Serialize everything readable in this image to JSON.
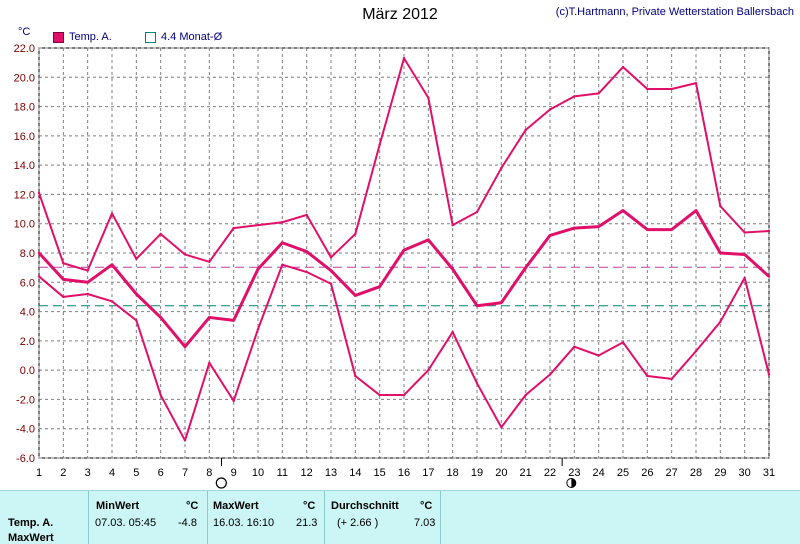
{
  "header": {
    "title": "März 2012",
    "copyright": "(c)T.Hartmann, Private Wetterstation Ballersbach"
  },
  "legend": {
    "unit": "°C",
    "series_label": "Temp. A.",
    "mean_label": "4.4 Monat-Ø"
  },
  "colors": {
    "series": "#e0106a",
    "month_avg_line": "#c040a0",
    "longterm_avg_line": "#008080",
    "grid": "#7f7f7f"
  },
  "moon_icons": [
    "new-moon-icon",
    "full-moon-icon"
  ],
  "chart_data": {
    "type": "line",
    "x": [
      1,
      2,
      3,
      4,
      5,
      6,
      7,
      8,
      9,
      10,
      11,
      12,
      13,
      14,
      15,
      16,
      17,
      18,
      19,
      20,
      21,
      22,
      23,
      24,
      25,
      26,
      27,
      28,
      29,
      30,
      31
    ],
    "xlim": [
      1,
      31
    ],
    "ylim": [
      -6,
      22
    ],
    "yticks": [
      -6,
      -4,
      -2,
      0,
      2,
      4,
      6,
      8,
      10,
      12,
      14,
      16,
      18,
      20,
      22
    ],
    "ytick_labels": [
      "-6.0",
      "-4.0",
      "-2.0",
      "0.0",
      "2.0",
      "4.0",
      "6.0",
      "8.0",
      "10.0",
      "12.0",
      "14.0",
      "16.0",
      "18.0",
      "20.0",
      "22.0"
    ],
    "series": [
      {
        "values": [
          12.1,
          7.3,
          6.8,
          10.7,
          7.6,
          9.3,
          7.9,
          7.4,
          9.7,
          9.9,
          10.1,
          10.6,
          7.7,
          9.3,
          15.4,
          21.3,
          18.6,
          9.9,
          10.8,
          13.8,
          16.4,
          17.8,
          18.7,
          18.9,
          20.7,
          19.2,
          19.2,
          19.6,
          11.2,
          9.4,
          9.5
        ]
      },
      {
        "values": [
          8.0,
          6.2,
          6.0,
          7.2,
          5.2,
          3.6,
          1.6,
          3.6,
          3.4,
          6.9,
          8.7,
          8.1,
          6.8,
          5.1,
          5.7,
          8.2,
          8.9,
          6.9,
          4.4,
          4.6,
          7.0,
          9.2,
          9.7,
          9.8,
          10.9,
          9.6,
          9.6,
          10.9,
          8.0,
          7.9,
          6.4
        ]
      },
      {
        "values": [
          6.4,
          5.0,
          5.2,
          4.7,
          3.4,
          -1.7,
          -4.8,
          0.5,
          -2.1,
          2.8,
          7.2,
          6.7,
          5.9,
          -0.4,
          -1.7,
          -1.7,
          0.0,
          2.6,
          -0.9,
          -3.9,
          -1.7,
          -0.3,
          1.6,
          1.0,
          1.9,
          -0.4,
          -0.6,
          1.3,
          3.3,
          6.3,
          -0.3
        ]
      }
    ],
    "hlines": [
      {
        "value": 7.03
      },
      {
        "value": 4.4
      }
    ],
    "grid": true
  },
  "stats": {
    "row_label": "Temp. A.",
    "min_header": "MinWert",
    "max_header": "MaxWert",
    "avg_header": "Durchschnitt",
    "unit": "°C",
    "min_time": "07.03.  05:45",
    "min_value": "-4.8",
    "max_time": "16.03.  16:10",
    "max_value": "21.3",
    "avg_diff": "(+ 2.66 )",
    "avg_value": "7.03",
    "row2_label": "MaxWert"
  }
}
